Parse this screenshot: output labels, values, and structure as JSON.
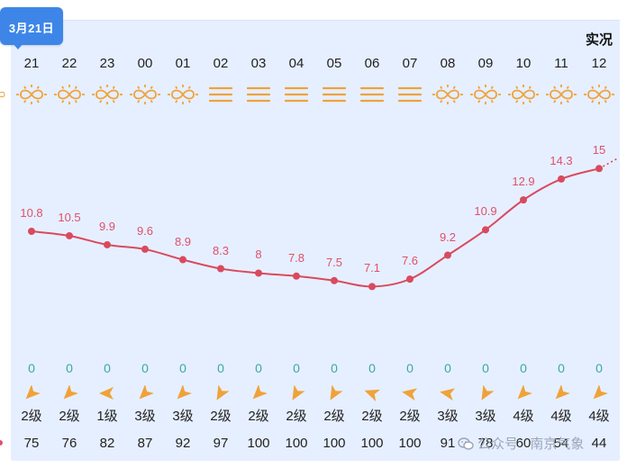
{
  "header": {
    "date_tag": "3月21日",
    "observed_label": "实况"
  },
  "colors": {
    "panel_bg": "#e6efff",
    "accent": "#3d86e8",
    "temp_line": "#d94a5e",
    "temp_text": "#e0506a",
    "precip_text": "#3aa8a8",
    "icon_orange": "#f0a23a"
  },
  "columns": [
    {
      "hour": "21",
      "weather": "sunny-haze-icon",
      "temp": "10.8",
      "precip": "0",
      "wind_dir_deg": -45,
      "wind": "2级",
      "humidity": "75"
    },
    {
      "hour": "22",
      "weather": "sunny-haze-icon",
      "temp": "10.5",
      "precip": "0",
      "wind_dir_deg": -45,
      "wind": "2级",
      "humidity": "76"
    },
    {
      "hour": "23",
      "weather": "sunny-haze-icon",
      "temp": "9.9",
      "precip": "0",
      "wind_dir_deg": 0,
      "wind": "1级",
      "humidity": "82"
    },
    {
      "hour": "00",
      "weather": "sunny-haze-icon",
      "temp": "9.6",
      "precip": "0",
      "wind_dir_deg": -45,
      "wind": "3级",
      "humidity": "87"
    },
    {
      "hour": "01",
      "weather": "sunny-haze-icon",
      "temp": "8.9",
      "precip": "0",
      "wind_dir_deg": -45,
      "wind": "3级",
      "humidity": "92"
    },
    {
      "hour": "02",
      "weather": "fog-icon",
      "temp": "8.3",
      "precip": "0",
      "wind_dir_deg": -60,
      "wind": "2级",
      "humidity": "97"
    },
    {
      "hour": "03",
      "weather": "fog-icon",
      "temp": "8",
      "precip": "0",
      "wind_dir_deg": -45,
      "wind": "2级",
      "humidity": "100"
    },
    {
      "hour": "04",
      "weather": "fog-icon",
      "temp": "7.8",
      "precip": "0",
      "wind_dir_deg": -60,
      "wind": "2级",
      "humidity": "100"
    },
    {
      "hour": "05",
      "weather": "fog-icon",
      "temp": "7.5",
      "precip": "0",
      "wind_dir_deg": -60,
      "wind": "2级",
      "humidity": "100"
    },
    {
      "hour": "06",
      "weather": "fog-icon",
      "temp": "7.1",
      "precip": "0",
      "wind_dir_deg": 20,
      "wind": "2级",
      "humidity": "100"
    },
    {
      "hour": "07",
      "weather": "fog-icon",
      "temp": "7.6",
      "precip": "0",
      "wind_dir_deg": 10,
      "wind": "2级",
      "humidity": "100"
    },
    {
      "hour": "08",
      "weather": "sunny-haze-icon",
      "temp": "9.2",
      "precip": "0",
      "wind_dir_deg": 10,
      "wind": "3级",
      "humidity": "91"
    },
    {
      "hour": "09",
      "weather": "sunny-haze-icon",
      "temp": "10.9",
      "precip": "0",
      "wind_dir_deg": -60,
      "wind": "3级",
      "humidity": "78"
    },
    {
      "hour": "10",
      "weather": "sunny-haze-icon",
      "temp": "12.9",
      "precip": "0",
      "wind_dir_deg": -45,
      "wind": "4级",
      "humidity": "60"
    },
    {
      "hour": "11",
      "weather": "sunny-haze-icon",
      "temp": "14.3",
      "precip": "0",
      "wind_dir_deg": -45,
      "wind": "4级",
      "humidity": "54"
    },
    {
      "hour": "12",
      "weather": "sunny-haze-icon",
      "temp": "15",
      "precip": "0",
      "wind_dir_deg": -45,
      "wind": "4级",
      "humidity": "44"
    }
  ],
  "watermark": "公众号 · 南京气象"
}
